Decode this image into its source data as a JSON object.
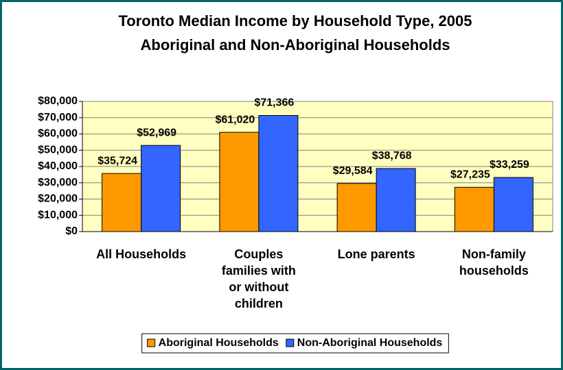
{
  "chart_data": {
    "type": "bar",
    "title": "Toronto Median Income by Household Type, 2005",
    "subtitle": "Aboriginal and Non-Aboriginal Households",
    "categories": [
      "All Households",
      "Couples families with or without children",
      "Lone parents",
      "Non-family households"
    ],
    "series": [
      {
        "name": "Aboriginal Households",
        "color": "#ff9900",
        "values": [
          35724,
          61020,
          29584,
          27235
        ],
        "value_labels": [
          "$35,724",
          "$61,020",
          "$29,584",
          "$27,235"
        ]
      },
      {
        "name": "Non-Aboriginal Households",
        "color": "#3366ff",
        "values": [
          52969,
          71366,
          38768,
          33259
        ],
        "value_labels": [
          "$52,969",
          "$71,366",
          "$38,768",
          "$33,259"
        ]
      }
    ],
    "ylim": [
      0,
      80000
    ],
    "yticks": [
      {
        "value": 0,
        "label": "$0"
      },
      {
        "value": 10000,
        "label": "$10,000"
      },
      {
        "value": 20000,
        "label": "$20,000"
      },
      {
        "value": 30000,
        "label": "$30,000"
      },
      {
        "value": 40000,
        "label": "$40,000"
      },
      {
        "value": 50000,
        "label": "$50,000"
      },
      {
        "value": 60000,
        "label": "$60,000"
      },
      {
        "value": 70000,
        "label": "$70,000"
      },
      {
        "value": 80000,
        "label": "$80,000"
      }
    ],
    "grid": true,
    "legend": "bottom"
  }
}
